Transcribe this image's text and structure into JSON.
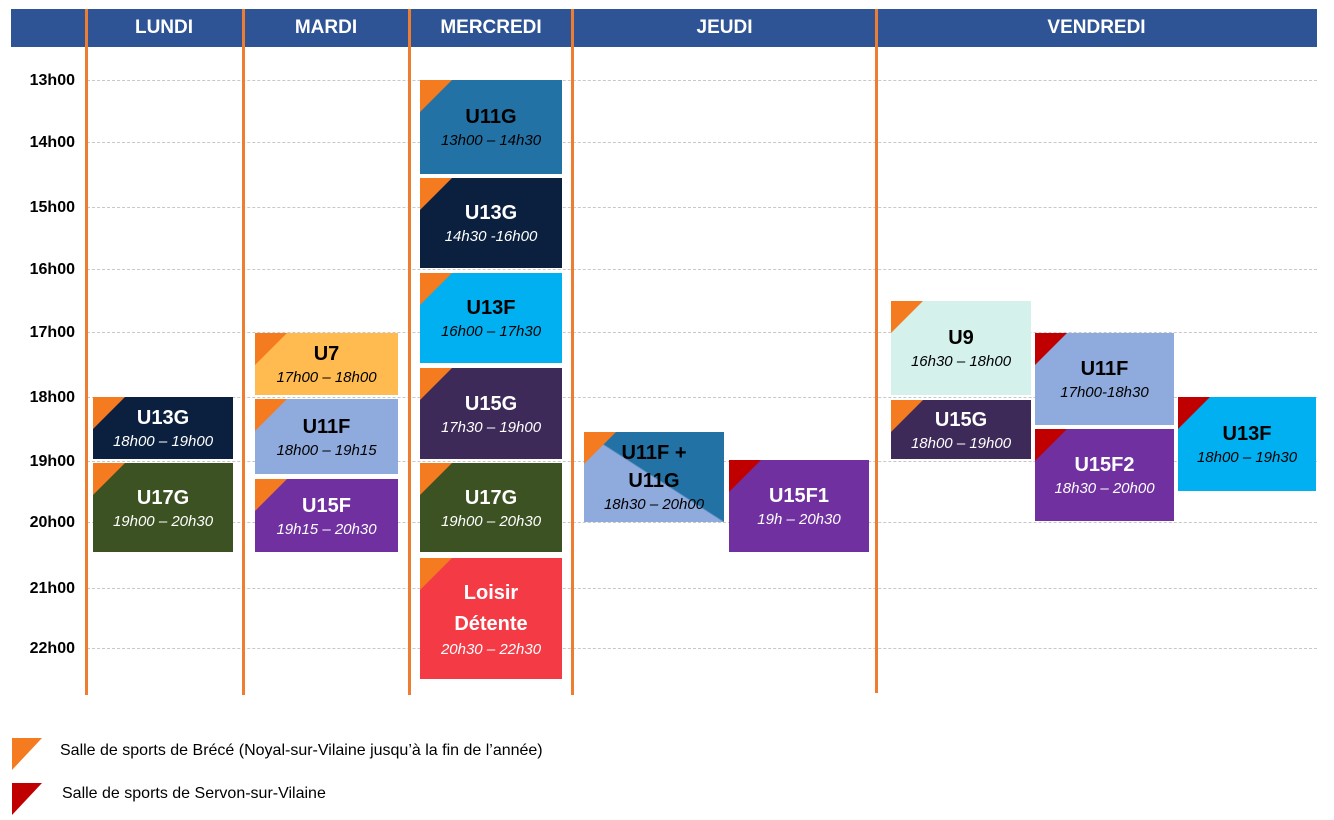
{
  "days": [
    "LUNDI",
    "MARDI",
    "MERCREDI",
    "JEUDI",
    "VENDREDI"
  ],
  "hours": [
    "13h00",
    "14h00",
    "15h00",
    "16h00",
    "17h00",
    "18h00",
    "19h00",
    "20h00",
    "21h00",
    "22h00"
  ],
  "venues": {
    "brece": {
      "label": "Salle de sports de Brécé (Noyal-sur-Vilaine jusqu’à la fin de l’année)",
      "color": "#f47b20"
    },
    "servon": {
      "label": "Salle de sports de Servon-sur-Vilaine",
      "color": "#c00000"
    }
  },
  "sessions": {
    "lundi_u13g": {
      "title": "U13G",
      "time": "18h00 – 19h00",
      "venue": "brece",
      "bg": "#0b1f3f",
      "fg": "#ffffff"
    },
    "lundi_u17g": {
      "title": "U17G",
      "time": "19h00 – 20h30",
      "venue": "brece",
      "bg": "#3c5222",
      "fg": "#ffffff"
    },
    "mardi_u7": {
      "title": "U7",
      "time": "17h00 – 18h00",
      "venue": "brece",
      "bg": "#ffbb4f",
      "fg": "#000000"
    },
    "mardi_u11f": {
      "title": "U11F",
      "time": "18h00 – 19h15",
      "venue": "brece",
      "bg": "#8faadc",
      "fg": "#000000"
    },
    "mardi_u15f": {
      "title": "U15F",
      "time": "19h15 – 20h30",
      "venue": "brece",
      "bg": "#7030a0",
      "fg": "#ffffff"
    },
    "mercredi_u11g": {
      "title": "U11G",
      "time": "13h00 – 14h30",
      "venue": "brece",
      "bg": "#2372a6",
      "fg": "#000000"
    },
    "mercredi_u13g": {
      "title": "U13G",
      "time": "14h30 -16h00",
      "venue": "brece",
      "bg": "#0b1f3f",
      "fg": "#ffffff"
    },
    "mercredi_u13f": {
      "title": "U13F",
      "time": "16h00 – 17h30",
      "venue": "brece",
      "bg": "#00b0f0",
      "fg": "#000000"
    },
    "mercredi_u15g": {
      "title": "U15G",
      "time": "17h30 – 19h00",
      "venue": "brece",
      "bg": "#3e2a58",
      "fg": "#ffffff"
    },
    "mercredi_u17g": {
      "title": "U17G",
      "time": "19h00 – 20h30",
      "venue": "brece",
      "bg": "#3c5222",
      "fg": "#ffffff"
    },
    "mercredi_loisir": {
      "title": "Loisir",
      "title2": "Détente",
      "time": "20h30 – 22h30",
      "venue": "brece",
      "bg": "#f33a45",
      "fg": "#ffffff"
    },
    "jeudi_u11fu11g": {
      "title": "U11F +",
      "title2": "U11G",
      "time": "18h30 – 20h00",
      "venue": "brece",
      "bg": "#8faadc",
      "bg2": "#2372a6",
      "fg": "#000000"
    },
    "jeudi_u15f1": {
      "title": "U15F1",
      "time": "19h – 20h30",
      "venue": "servon",
      "bg": "#7030a0",
      "fg": "#ffffff"
    },
    "vendredi_u9": {
      "title": "U9",
      "time": "16h30 – 18h00",
      "venue": "brece",
      "bg": "#d4f1ec",
      "fg": "#000000"
    },
    "vendredi_u15g": {
      "title": "U15G",
      "time": "18h00 – 19h00",
      "venue": "brece",
      "bg": "#3e2a58",
      "fg": "#ffffff"
    },
    "vendredi_u11f": {
      "title": "U11F",
      "time": "17h00-18h30",
      "venue": "servon",
      "bg": "#8faadc",
      "fg": "#000000"
    },
    "vendredi_u15f2": {
      "title": "U15F2",
      "time": "18h30 – 20h00",
      "venue": "servon",
      "bg": "#7030a0",
      "fg": "#ffffff"
    },
    "vendredi_u13f": {
      "title": "U13F",
      "time": "18h00 – 19h30",
      "venue": "servon",
      "bg": "#00b0f0",
      "fg": "#000000"
    }
  }
}
